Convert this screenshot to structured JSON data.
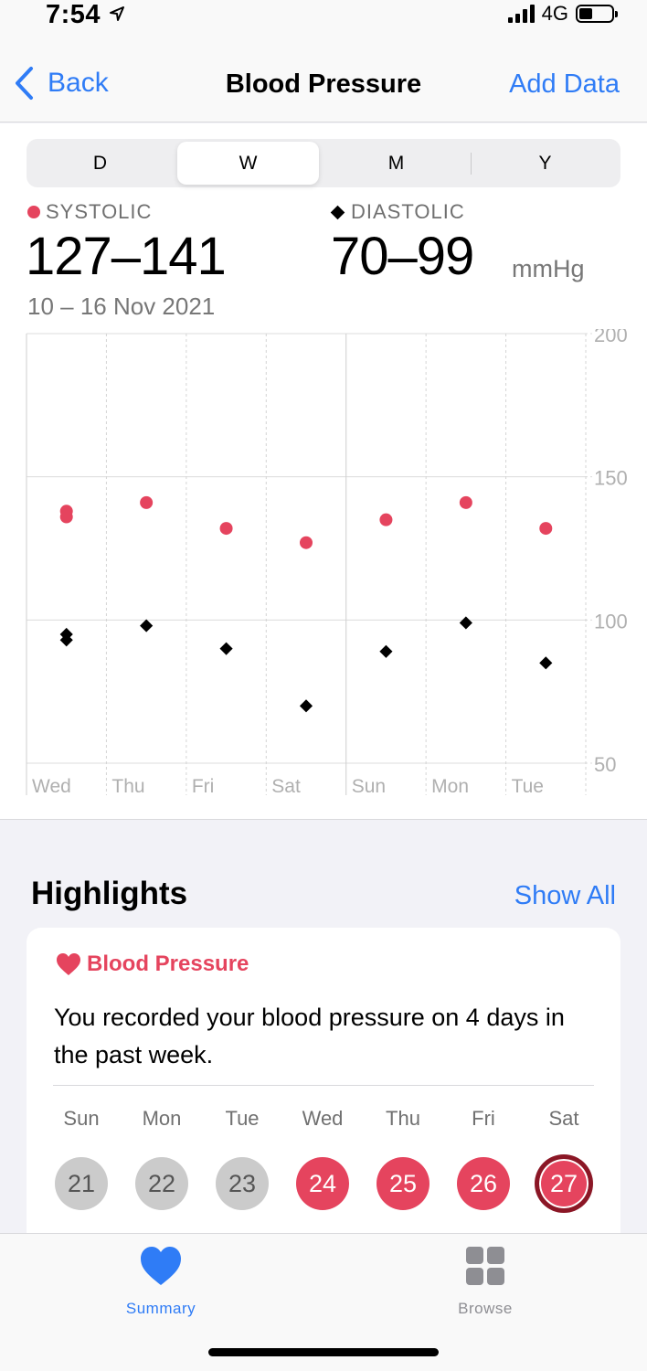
{
  "status_bar": {
    "time": "7:54",
    "network": "4G"
  },
  "nav": {
    "back_label": "Back",
    "title": "Blood Pressure",
    "add_data_label": "Add Data"
  },
  "segments": [
    "D",
    "W",
    "M",
    "Y"
  ],
  "selected_segment": "W",
  "summary": {
    "systolic_label": "SYSTOLIC",
    "systolic_range": "127–141",
    "diastolic_label": "DIASTOLIC",
    "diastolic_range": "70–99",
    "unit": "mmHg",
    "date_range": "10 – 16 Nov 2021"
  },
  "chart_data": {
    "type": "scatter",
    "categories": [
      "Wed",
      "Thu",
      "Fri",
      "Sat",
      "Sun",
      "Mon",
      "Tue"
    ],
    "y_ticks": [
      200,
      150,
      100,
      50
    ],
    "ylim": [
      50,
      200
    ],
    "systolic_color": "#e5445e",
    "diastolic_color": "#000000",
    "series": [
      {
        "marker": "circle",
        "points": [
          {
            "day": "Wed",
            "value": 136
          },
          {
            "day": "Wed",
            "value": 138
          },
          {
            "day": "Thu",
            "value": 141
          },
          {
            "day": "Fri",
            "value": 132
          },
          {
            "day": "Sat",
            "value": 127
          },
          {
            "day": "Sun",
            "value": 135
          },
          {
            "day": "Mon",
            "value": 141
          },
          {
            "day": "Tue",
            "value": 132
          }
        ]
      },
      {
        "marker": "diamond",
        "points": [
          {
            "day": "Wed",
            "value": 93
          },
          {
            "day": "Wed",
            "value": 95
          },
          {
            "day": "Thu",
            "value": 98
          },
          {
            "day": "Fri",
            "value": 90
          },
          {
            "day": "Sat",
            "value": 70
          },
          {
            "day": "Sun",
            "value": 89
          },
          {
            "day": "Mon",
            "value": 99
          },
          {
            "day": "Tue",
            "value": 85
          }
        ]
      }
    ]
  },
  "highlights": {
    "title": "Highlights",
    "show_all_label": "Show All",
    "card_title": "Blood Pressure",
    "card_text": "You recorded your blood pressure on 4 days in the past week.",
    "days": [
      {
        "label": "Sun",
        "date": "21",
        "recorded": false
      },
      {
        "label": "Mon",
        "date": "22",
        "recorded": false
      },
      {
        "label": "Tue",
        "date": "23",
        "recorded": false
      },
      {
        "label": "Wed",
        "date": "24",
        "recorded": true
      },
      {
        "label": "Thu",
        "date": "25",
        "recorded": true
      },
      {
        "label": "Fri",
        "date": "26",
        "recorded": true
      },
      {
        "label": "Sat",
        "date": "27",
        "recorded": true,
        "current": true
      }
    ]
  },
  "tab_bar": {
    "items": [
      {
        "label": "Summary",
        "icon": "heart-icon",
        "active": true
      },
      {
        "label": "Browse",
        "icon": "grid-icon",
        "active": false
      }
    ],
    "accent_color": "#2f7cf6"
  }
}
